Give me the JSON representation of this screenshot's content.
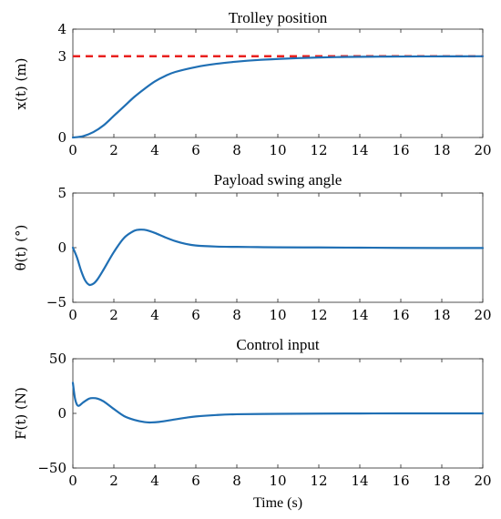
{
  "chart_data": [
    {
      "type": "line",
      "title": "Trolley position",
      "xlabel": "",
      "ylabel": "x(t) (m)",
      "xlim": [
        0,
        20
      ],
      "ylim": [
        0,
        4
      ],
      "xticks": [
        "0",
        "2",
        "4",
        "6",
        "8",
        "10",
        "12",
        "14",
        "16",
        "18",
        "20"
      ],
      "yticks": [
        "0",
        "3",
        "4"
      ],
      "series": [
        {
          "color": "#1f6fb4",
          "x": [
            0,
            0.5,
            1,
            1.5,
            2,
            2.5,
            3,
            3.5,
            4,
            4.5,
            5,
            6,
            7,
            8,
            9,
            10,
            11,
            12,
            13,
            14,
            15,
            16,
            17,
            18,
            19,
            20
          ],
          "y": [
            0,
            0.05,
            0.2,
            0.45,
            0.8,
            1.15,
            1.5,
            1.8,
            2.07,
            2.27,
            2.42,
            2.6,
            2.72,
            2.8,
            2.86,
            2.9,
            2.93,
            2.955,
            2.97,
            2.98,
            2.985,
            2.99,
            2.993,
            2.995,
            2.997,
            2.998
          ]
        }
      ],
      "reference": {
        "y": 3,
        "color": "#e8201e",
        "style": "dashed"
      }
    },
    {
      "type": "line",
      "title": "Payload swing angle",
      "xlabel": "",
      "ylabel": "θ(t) (°)",
      "xlim": [
        0,
        20
      ],
      "ylim": [
        -5,
        5
      ],
      "xticks": [
        "0",
        "2",
        "4",
        "6",
        "8",
        "10",
        "12",
        "14",
        "16",
        "18",
        "20"
      ],
      "yticks": [
        "5",
        "0",
        "−5"
      ],
      "series": [
        {
          "color": "#1f6fb4",
          "x": [
            0,
            0.2,
            0.4,
            0.6,
            0.8,
            1.0,
            1.2,
            1.5,
            2.0,
            2.5,
            3.0,
            3.3,
            3.6,
            4.0,
            4.5,
            5.0,
            5.5,
            6.0,
            7,
            8,
            9,
            10,
            12,
            14,
            16,
            18,
            20
          ],
          "y": [
            0,
            -0.9,
            -2.1,
            -3.0,
            -3.4,
            -3.3,
            -2.9,
            -2.0,
            -0.4,
            0.9,
            1.55,
            1.65,
            1.6,
            1.35,
            0.95,
            0.6,
            0.35,
            0.2,
            0.1,
            0.07,
            0.05,
            0.03,
            0.02,
            0.0,
            -0.02,
            -0.03,
            -0.03
          ]
        }
      ]
    },
    {
      "type": "line",
      "title": "Control input",
      "xlabel": "Time (s)",
      "ylabel": "F(t) (N)",
      "xlim": [
        0,
        20
      ],
      "ylim": [
        -50,
        50
      ],
      "xticks": [
        "0",
        "2",
        "4",
        "6",
        "8",
        "10",
        "12",
        "14",
        "16",
        "18",
        "20"
      ],
      "yticks": [
        "50",
        "0",
        "−50"
      ],
      "series": [
        {
          "color": "#1f6fb4",
          "x": [
            0,
            0.1,
            0.2,
            0.3,
            0.5,
            0.8,
            1.0,
            1.2,
            1.5,
            2.0,
            2.5,
            3.0,
            3.5,
            3.8,
            4.2,
            5.0,
            5.5,
            6.0,
            7.0,
            8.0,
            10,
            12,
            14,
            16,
            18,
            20
          ],
          "y": [
            28,
            14,
            8,
            7,
            10,
            13.5,
            14,
            13.5,
            11,
            4,
            -2.5,
            -6,
            -8,
            -8.3,
            -7.8,
            -5.5,
            -4,
            -2.8,
            -1.5,
            -0.8,
            -0.4,
            -0.2,
            -0.1,
            0,
            0,
            0
          ]
        }
      ]
    }
  ]
}
